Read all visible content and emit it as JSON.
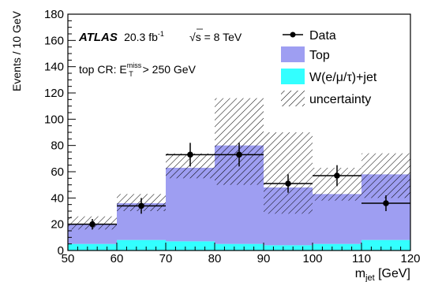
{
  "chart_data": {
    "type": "bar",
    "x_edges": [
      50,
      60,
      70,
      80,
      90,
      100,
      110,
      120
    ],
    "x_unit": "GeV",
    "series": [
      {
        "name": "W(e/μ/τ)+jet",
        "values": [
          5,
          8,
          7,
          5,
          4,
          5,
          8
        ]
      },
      {
        "name": "Top",
        "values": [
          15,
          28,
          56,
          75,
          44,
          38,
          50
        ]
      }
    ],
    "totals": [
      20,
      36,
      63,
      80,
      48,
      43,
      58
    ],
    "uncertainty": [
      {
        "low": 16,
        "high": 26
      },
      {
        "low": 30,
        "high": 43
      },
      {
        "low": 55,
        "high": 74
      },
      {
        "low": 50,
        "high": 116
      },
      {
        "low": 28,
        "high": 90
      },
      {
        "low": 38,
        "high": 63
      },
      {
        "low": 40,
        "high": 74
      }
    ],
    "data_points": [
      {
        "x": 55,
        "y": 20,
        "err": 4
      },
      {
        "x": 65,
        "y": 34,
        "err": 6
      },
      {
        "x": 75,
        "y": 73,
        "err": 9
      },
      {
        "x": 85,
        "y": 73,
        "err": 9
      },
      {
        "x": 95,
        "y": 51,
        "err": 7
      },
      {
        "x": 105,
        "y": 57,
        "err": 8
      },
      {
        "x": 115,
        "y": 36,
        "err": 6
      }
    ],
    "xlim": [
      50,
      120
    ],
    "ylim": [
      0,
      180
    ],
    "x_ticks": [
      50,
      60,
      70,
      80,
      90,
      100,
      110,
      120
    ],
    "y_ticks": [
      0,
      20,
      40,
      60,
      80,
      100,
      120,
      140,
      160,
      180
    ],
    "xlabel": "m_jet [GeV]",
    "ylabel": "Events / 10 GeV",
    "colors": {
      "top": "#9e9ef2",
      "wjet": "#33ffff",
      "data": "#000000",
      "hatch": "#000000"
    },
    "legend": {
      "placement": "top-right",
      "entries": [
        "Data",
        "Top",
        "W(e/μ/τ)+jet",
        "uncertainty"
      ]
    },
    "annotations": {
      "experiment": "ATLAS",
      "lumi_value": "20.3 fb",
      "lumi_exp": "-1",
      "energy": "s = 8 TeV",
      "region_prefix": "top CR: E",
      "region_sup": "miss",
      "region_sub": "T",
      "region_suffix": " > 250 GeV"
    },
    "xlabel_parts": {
      "main": "m",
      "sub": "jet",
      "unit": " [GeV]"
    }
  }
}
